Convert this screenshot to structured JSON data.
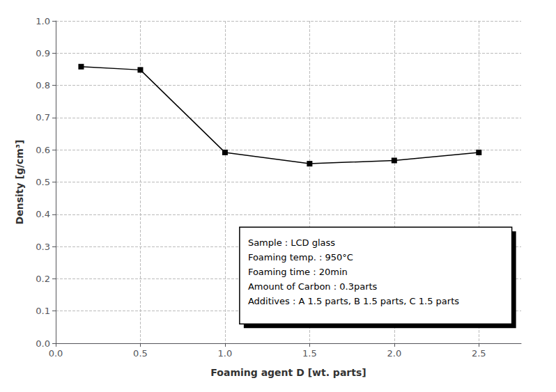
{
  "chart_data": {
    "type": "line",
    "x": [
      0.15,
      0.5,
      1.0,
      1.5,
      2.0,
      2.5
    ],
    "values": [
      0.858,
      0.848,
      0.592,
      0.557,
      0.567,
      0.592
    ],
    "xlabel": "Foaming agent D [wt. parts]",
    "ylabel": "Density [g/cm³]",
    "xlim": [
      0.0,
      2.75
    ],
    "ylim": [
      0.0,
      1.0
    ],
    "xticks": [
      {
        "value": 0.0,
        "label": "0.0"
      },
      0.5,
      {
        "value": 1.0,
        "label": "1.0"
      },
      1.5,
      {
        "value": 2.0,
        "label": "2.0"
      },
      2.5
    ],
    "yticks": [
      {
        "value": 0.0,
        "label": "0.0"
      },
      0.1,
      0.2,
      0.3,
      0.4,
      0.5,
      0.6,
      0.7,
      0.8,
      0.9,
      {
        "value": 1.0,
        "label": "1.0"
      }
    ],
    "color": "#000000",
    "marker": "square",
    "grid": true,
    "annotations": [
      "Sample : LCD glass",
      "Foaming temp. : 950°C",
      "Foaming time : 20min",
      "Amount of Carbon : 0.3parts",
      "Additives : A 1.5 parts, B 1.5 parts, C 1.5 parts"
    ]
  }
}
